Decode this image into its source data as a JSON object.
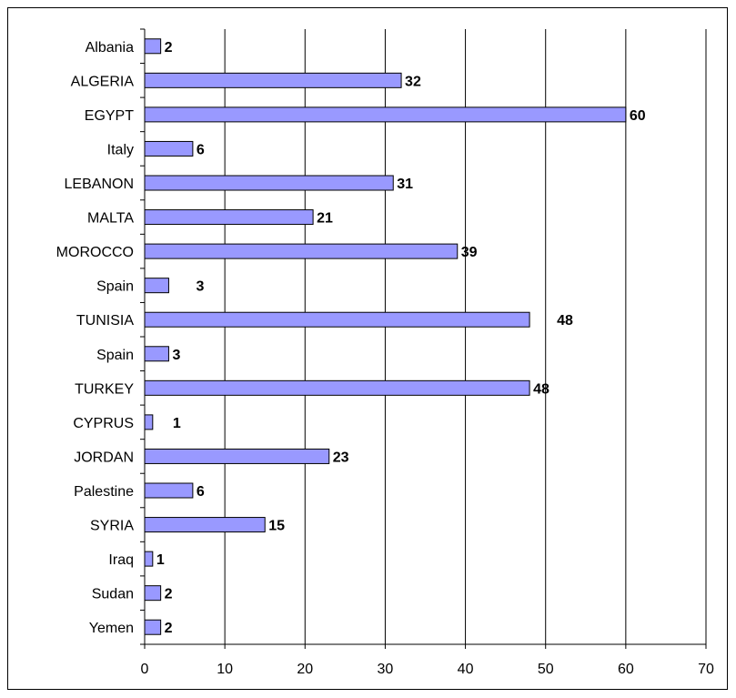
{
  "chart_data": {
    "type": "bar",
    "orientation": "horizontal",
    "categories": [
      "Albania",
      "ALGERIA",
      "EGYPT",
      "Italy",
      "LEBANON",
      "MALTA",
      "MOROCCO",
      "Spain",
      "TUNISIA",
      "Spain",
      "TURKEY",
      "CYPRUS",
      "JORDAN",
      "Palestine",
      "SYRIA",
      "Iraq",
      "Sudan",
      "Yemen"
    ],
    "values": [
      2,
      32,
      60,
      6,
      31,
      21,
      39,
      3,
      48,
      3,
      48,
      1,
      23,
      6,
      15,
      1,
      2,
      2
    ],
    "data_labels": [
      "2",
      "32",
      "60",
      "6",
      "31",
      "21",
      "39",
      "3",
      "48",
      "3",
      "48",
      "1",
      "23",
      "6",
      "15",
      "1",
      "2",
      "2"
    ],
    "title": "",
    "xlabel": "",
    "ylabel": "",
    "xlim": [
      0,
      70
    ],
    "x_ticks": [
      0,
      10,
      20,
      30,
      40,
      50,
      60,
      70
    ],
    "grid": "vertical gridlines",
    "legend": "none",
    "colors": {
      "bar_fill": "#9999ff",
      "bar_stroke": "#000000",
      "gridline": "#000000",
      "text": "#000000"
    }
  }
}
